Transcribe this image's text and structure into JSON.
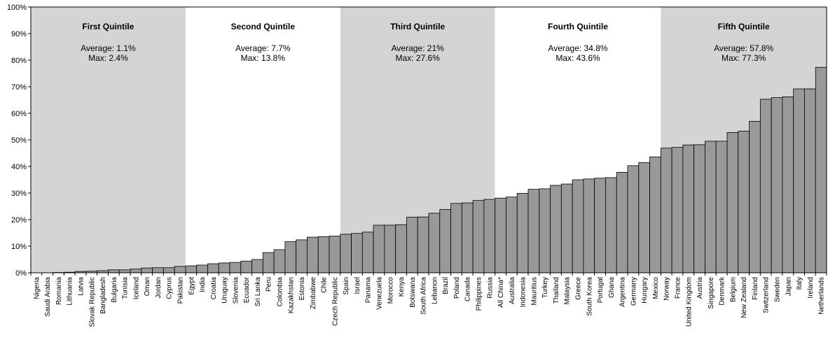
{
  "chart_data": {
    "type": "bar",
    "title": "",
    "xlabel": "",
    "ylabel": "",
    "ylim": [
      0,
      100
    ],
    "y_tick_labels": [
      "0%",
      "10%",
      "20%",
      "30%",
      "40%",
      "50%",
      "60%",
      "70%",
      "80%",
      "90%",
      "100%"
    ],
    "grid": false,
    "colors": {
      "bar": "#999999",
      "bar_edge": "#000000",
      "shaded_band": "#d4d4d4",
      "plot_background": "#ffffff"
    },
    "categories": [
      "Nigeria",
      "Saudi Arabia",
      "Romania",
      "Lithuania",
      "Latvia",
      "Slovak Republic",
      "Bangladesh",
      "Bulgaria",
      "Tunisia",
      "Iceland",
      "Oman",
      "Jordan",
      "Cyprus",
      "Pakistan",
      "Egypt",
      "India",
      "Croatia",
      "Uruguay",
      "Slovenia",
      "Ecuador",
      "Sri Lanka",
      "Peru",
      "Colombia",
      "Kazakhstan",
      "Estonia",
      "Zimbabwe",
      "Chile",
      "Czech Republic",
      "Spain",
      "Israel",
      "Panama",
      "Venezuela",
      "Morocco",
      "Kenya",
      "Botswana",
      "South Africa",
      "Lebanon",
      "Brazil",
      "Poland",
      "Canada",
      "Philippines",
      "Russia",
      "All China*",
      "Australia",
      "Indonesia",
      "Mauritius",
      "Turkey",
      "Thailand",
      "Malaysia",
      "Greece",
      "South Korea",
      "Portugal",
      "Ghana",
      "Argentina",
      "Germany",
      "Hungary",
      "Mexico",
      "Norway",
      "France",
      "United Kingdom",
      "Austria",
      "Singapore",
      "Denmark",
      "Belgium",
      "New Zealand",
      "Finland",
      "Switzerland",
      "Sweden",
      "Japan",
      "Italy",
      "Ireland",
      "Netherlands"
    ],
    "values": [
      0.0,
      0.0,
      0.1,
      0.2,
      0.5,
      0.6,
      0.8,
      1.1,
      1.1,
      1.4,
      1.8,
      1.9,
      1.9,
      2.4,
      2.6,
      2.9,
      3.4,
      3.7,
      3.9,
      4.4,
      5.0,
      7.6,
      8.7,
      11.7,
      12.4,
      13.4,
      13.6,
      13.8,
      14.5,
      14.8,
      15.3,
      17.9,
      17.9,
      18.1,
      20.9,
      21.0,
      22.4,
      23.8,
      26.1,
      26.3,
      27.2,
      27.6,
      28.1,
      28.5,
      29.9,
      31.4,
      31.6,
      32.9,
      33.4,
      35.0,
      35.3,
      35.6,
      35.8,
      37.8,
      40.3,
      41.5,
      43.6,
      46.9,
      47.2,
      48.1,
      48.2,
      49.5,
      49.5,
      52.8,
      53.3,
      57.0,
      65.3,
      65.9,
      66.2,
      69.2,
      69.2,
      77.3
    ],
    "quintiles": [
      {
        "title": "First Quintile",
        "average": "Average: 1.1%",
        "max": "Max: 2.4%",
        "shaded": true,
        "start_index": 0,
        "end_index": 13
      },
      {
        "title": "Second Quintile",
        "average": "Average: 7.7%",
        "max": "Max: 13.8%",
        "shaded": false,
        "start_index": 14,
        "end_index": 27
      },
      {
        "title": "Third Quintile",
        "average": "Average: 21%",
        "max": "Max: 27.6%",
        "shaded": true,
        "start_index": 28,
        "end_index": 41
      },
      {
        "title": "Fourth Quintile",
        "average": "Average: 34.8%",
        "max": "Max: 43.6%",
        "shaded": false,
        "start_index": 42,
        "end_index": 56
      },
      {
        "title": "Fifth Quintile",
        "average": "Average: 57.8%",
        "max": "Max: 77.3%",
        "shaded": true,
        "start_index": 57,
        "end_index": 71
      }
    ]
  }
}
